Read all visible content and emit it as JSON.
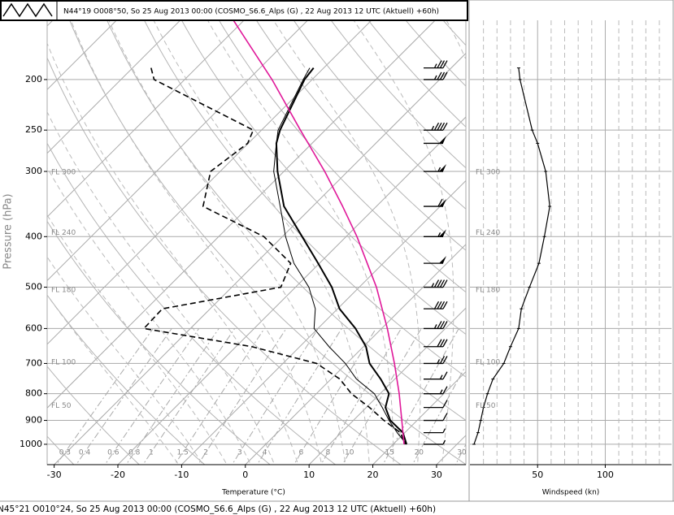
{
  "header": {
    "title": "N44°19 O008°50, So 25 Aug 2013 00:00 (COSMO_S6.6_Alps (G) , 22 Aug 2013 12 UTC (Aktuell) +60h)"
  },
  "footer": {
    "title": "N45°21 O010°24, So 25 Aug 2013 00:00 (COSMO_S6.6_Alps (G) , 22 Aug 2013 12 UTC (Aktuell) +60h)"
  },
  "chart_data": [
    {
      "type": "skewt",
      "xlabel": "Temperature (°C)",
      "ylabel": "Pressure (hPa)",
      "xlim": [
        -31.1,
        34.6
      ],
      "xticks": [
        -30,
        -20,
        -10,
        0,
        10,
        20,
        30
      ],
      "ylim": [
        1094,
        154
      ],
      "yticks": [
        200,
        250,
        300,
        400,
        500,
        600,
        700,
        800,
        900,
        1000
      ],
      "log_y": true,
      "grid": true,
      "flight_levels": [
        {
          "value": 301,
          "label": "FL 300"
        },
        {
          "value": 393,
          "label": "FL 240"
        },
        {
          "value": 506,
          "label": "FL 180"
        },
        {
          "value": 697,
          "label": "FL 100"
        },
        {
          "value": 843,
          "label": "FL 50"
        }
      ],
      "mixing_ratios": [
        0.3,
        0.4,
        0.6,
        0.8,
        1,
        1.5,
        2,
        3,
        4,
        6,
        8,
        10,
        15,
        20,
        30
      ],
      "y": [
        190,
        200,
        250,
        265,
        300,
        350,
        400,
        450,
        500,
        550,
        600,
        650,
        700,
        750,
        800,
        850,
        900,
        950,
        1000
      ],
      "series": [
        {
          "color": "#000000",
          "width": 2,
          "values": [
            -51.6,
            -51.2,
            -47.1,
            -45.6,
            -41.0,
            -34.5,
            -26.9,
            -20.2,
            -14.3,
            -9.7,
            -4.1,
            0.4,
            3.6,
            7.8,
            11.4,
            13.0,
            15.8,
            19.7,
            22.1
          ]
        },
        {
          "color": "#000000",
          "width": 1,
          "values": [
            -52.2,
            -51.4,
            -47.4,
            -45.6,
            -41.6,
            -35.1,
            -29.5,
            -24.0,
            -17.9,
            -13.5,
            -10.6,
            -5.4,
            -0.2,
            4.0,
            9.1,
            12.5,
            15.6,
            18.8,
            22.1
          ]
        },
        {
          "color": "#000000",
          "width": 1.6,
          "dash": "7 4",
          "values": [
            -77.1,
            -74.8,
            -51.3,
            -50.1,
            -51.5,
            -47.2,
            -32.9,
            -24.5,
            -22.3,
            -37.5,
            -37.3,
            -17.5,
            -4.7,
            1.4,
            5.5,
            10.5,
            14.8,
            19.3,
            21.9
          ]
        },
        {
          "color": "#e0199a",
          "width": 1.6,
          "y": [
            150,
            200,
            250,
            300,
            350,
            400,
            500,
            600,
            700,
            800,
            900,
            1000
          ],
          "values": [
            -73.2,
            -56.3,
            -43.9,
            -33.6,
            -25.3,
            -18.3,
            -7.3,
            0.9,
            7.5,
            13.0,
            17.6,
            21.7
          ]
        }
      ]
    },
    {
      "type": "line",
      "xlabel": "Windspeed (kn)",
      "xlim": [
        0,
        149
      ],
      "xticks": [
        50,
        100
      ],
      "ylim": [
        1094,
        154
      ],
      "log_y": true,
      "color": "#000000",
      "y": [
        190,
        200,
        250,
        265,
        300,
        350,
        400,
        450,
        500,
        550,
        600,
        650,
        700,
        750,
        800,
        850,
        900,
        950,
        1000
      ],
      "values": [
        36,
        37,
        46,
        50,
        56,
        59,
        55,
        51,
        44,
        38,
        36,
        30,
        25,
        17,
        13,
        10,
        8,
        6,
        3
      ]
    }
  ]
}
